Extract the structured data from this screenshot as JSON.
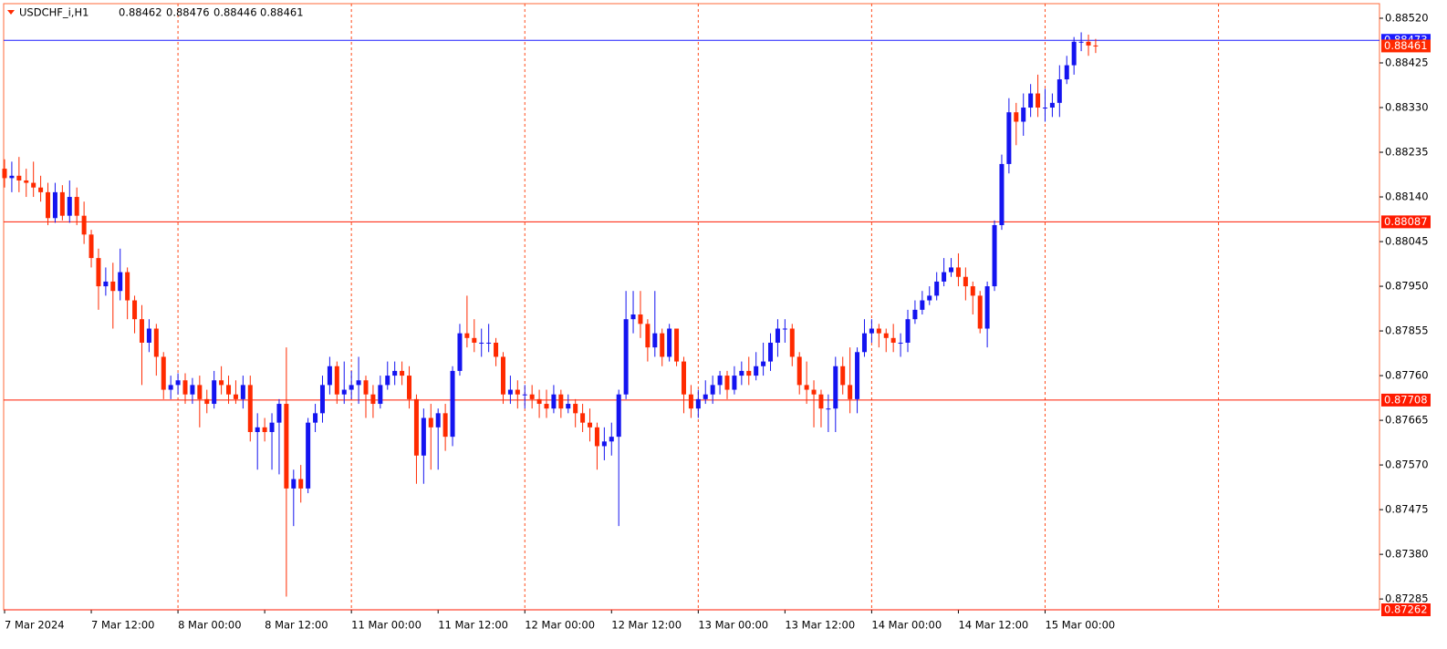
{
  "chart_data": {
    "type": "candlestick",
    "title": "USDCHF_i,H1",
    "categories": [
      "7 Mar 2024",
      null,
      null,
      null,
      null,
      null,
      null,
      null,
      null,
      null,
      null,
      null,
      "7 Mar 12:00",
      null,
      null,
      null,
      null,
      null,
      null,
      null,
      null,
      null,
      null,
      null,
      "8 Mar 00:00",
      null,
      null,
      null,
      null,
      null,
      null,
      null,
      null,
      null,
      null,
      null,
      "8 Mar 12:00",
      null,
      null,
      null,
      null,
      null,
      null,
      null,
      null,
      null,
      null,
      null,
      "11 Mar 00:00",
      null,
      null,
      null,
      null,
      null,
      null,
      null,
      null,
      null,
      null,
      null,
      "11 Mar 12:00",
      null,
      null,
      null,
      null,
      null,
      null,
      null,
      null,
      null,
      null,
      null,
      "12 Mar 00:00",
      null,
      null,
      null,
      null,
      null,
      null,
      null,
      null,
      null,
      null,
      null,
      "12 Mar 12:00",
      null,
      null,
      null,
      null,
      null,
      null,
      null,
      null,
      null,
      null,
      null,
      "13 Mar 00:00",
      null,
      null,
      null,
      null,
      null,
      null,
      null,
      null,
      null,
      null,
      null,
      "13 Mar 12:00",
      null,
      null,
      null,
      null,
      null,
      null,
      null,
      null,
      null,
      null,
      null,
      "14 Mar 00:00",
      null,
      null,
      null,
      null,
      null,
      null,
      null,
      null,
      null,
      null,
      null,
      "14 Mar 12:00",
      null,
      null,
      null,
      null,
      null,
      null,
      null,
      null,
      null,
      null,
      null,
      "15 Mar 00:00",
      null,
      null,
      null,
      null,
      null,
      null,
      null
    ],
    "open": [
      0.882,
      0.8818,
      0.88185,
      0.88175,
      0.8817,
      0.8816,
      0.8815,
      0.88095,
      0.8815,
      0.881,
      0.8814,
      0.881,
      0.8806,
      0.8801,
      0.8795,
      0.8796,
      0.8794,
      0.8798,
      0.8792,
      0.8788,
      0.8783,
      0.8786,
      0.878,
      0.8773,
      0.8774,
      0.8775,
      0.8772,
      0.8774,
      0.8771,
      0.877,
      0.8775,
      0.8774,
      0.8772,
      0.8771,
      0.8774,
      0.8764,
      0.8765,
      0.8764,
      0.8766,
      0.877,
      0.8752,
      0.8754,
      0.8752,
      0.8766,
      0.8768,
      0.8774,
      0.8778,
      0.8772,
      0.8773,
      0.8774,
      0.8775,
      0.8772,
      0.877,
      0.8774,
      0.8776,
      0.8777,
      0.8776,
      0.8771,
      0.8759,
      0.8767,
      0.8765,
      0.8768,
      0.8763,
      0.8777,
      0.8785,
      0.8784,
      0.8783,
      0.8783,
      0.8783,
      0.878,
      0.8772,
      0.8773,
      0.8772,
      0.8772,
      0.8771,
      0.877,
      0.8769,
      0.8772,
      0.8769,
      0.877,
      0.8768,
      0.8766,
      0.8765,
      0.8761,
      0.8762,
      0.8763,
      0.8772,
      0.8788,
      0.8789,
      0.8787,
      0.8782,
      0.8785,
      0.878,
      0.8786,
      0.8779,
      0.8772,
      0.8769,
      0.8771,
      0.8772,
      0.8774,
      0.8776,
      0.8773,
      0.8776,
      0.8777,
      0.8776,
      0.8778,
      0.8779,
      0.8783,
      0.8786,
      0.8786,
      0.878,
      0.8774,
      0.8773,
      0.8772,
      0.8769,
      0.8769,
      0.8778,
      0.8774,
      0.8771,
      0.8781,
      0.8785,
      0.8786,
      0.8785,
      0.8784,
      0.8783,
      0.8783,
      0.8788,
      0.879,
      0.8792,
      0.8793,
      0.8796,
      0.8798,
      0.8799,
      0.8797,
      0.8795,
      0.8793,
      0.8786,
      0.8795,
      0.8808,
      0.8821,
      0.8832,
      0.883,
      0.8833,
      0.8836,
      0.8833,
      0.8833,
      0.8834,
      0.8839,
      0.8842,
      0.8847,
      0.8847,
      0.88462
    ],
    "high": [
      0.8822,
      0.88215,
      0.88225,
      0.882,
      0.88215,
      0.88185,
      0.8817,
      0.8817,
      0.88165,
      0.88175,
      0.8816,
      0.8813,
      0.8807,
      0.8803,
      0.8799,
      0.88,
      0.8803,
      0.8799,
      0.8793,
      0.8791,
      0.8788,
      0.8787,
      0.8781,
      0.8776,
      0.87765,
      0.87765,
      0.87755,
      0.8776,
      0.8773,
      0.8777,
      0.8778,
      0.8776,
      0.8775,
      0.8776,
      0.8776,
      0.8768,
      0.8767,
      0.8768,
      0.8771,
      0.8782,
      0.8756,
      0.8757,
      0.8767,
      0.877,
      0.8776,
      0.878,
      0.8779,
      0.8779,
      0.8777,
      0.878,
      0.8776,
      0.8774,
      0.8776,
      0.8779,
      0.8779,
      0.8779,
      0.8778,
      0.8772,
      0.8769,
      0.877,
      0.8769,
      0.877,
      0.8778,
      0.8787,
      0.8793,
      0.8788,
      0.8786,
      0.8787,
      0.8784,
      0.8781,
      0.8776,
      0.8775,
      0.8774,
      0.8774,
      0.8773,
      0.8773,
      0.8774,
      0.8773,
      0.8772,
      0.8771,
      0.877,
      0.8769,
      0.8766,
      0.8765,
      0.8766,
      0.8773,
      0.8794,
      0.8794,
      0.8794,
      0.8788,
      0.8794,
      0.8786,
      0.8787,
      0.8786,
      0.878,
      0.8774,
      0.8773,
      0.8775,
      0.8776,
      0.8777,
      0.8777,
      0.8778,
      0.8779,
      0.878,
      0.8781,
      0.8783,
      0.8785,
      0.8788,
      0.8788,
      0.8787,
      0.8781,
      0.8779,
      0.8775,
      0.8773,
      0.8772,
      0.878,
      0.878,
      0.8782,
      0.8782,
      0.8788,
      0.8788,
      0.8787,
      0.8786,
      0.8787,
      0.8785,
      0.879,
      0.8792,
      0.8794,
      0.8795,
      0.8798,
      0.8801,
      0.8801,
      0.8802,
      0.8799,
      0.8796,
      0.8794,
      0.8796,
      0.8809,
      0.8823,
      0.8835,
      0.8834,
      0.8836,
      0.8838,
      0.884,
      0.8837,
      0.8836,
      0.8842,
      0.8844,
      0.8848,
      0.8849,
      0.88485,
      0.88476
    ],
    "low": [
      0.8816,
      0.8815,
      0.8815,
      0.8814,
      0.8814,
      0.8813,
      0.8808,
      0.88085,
      0.8809,
      0.88085,
      0.8808,
      0.8804,
      0.8799,
      0.879,
      0.8793,
      0.8786,
      0.8792,
      0.8788,
      0.8785,
      0.8774,
      0.8781,
      0.8776,
      0.8771,
      0.8771,
      0.8772,
      0.877,
      0.877,
      0.8765,
      0.8768,
      0.8769,
      0.8772,
      0.877,
      0.877,
      0.8769,
      0.8762,
      0.8756,
      0.8762,
      0.8756,
      0.8755,
      0.8729,
      0.8744,
      0.8749,
      0.8751,
      0.8764,
      0.8766,
      0.8772,
      0.877,
      0.877,
      0.8771,
      0.877,
      0.8767,
      0.8767,
      0.8769,
      0.8773,
      0.8774,
      0.8774,
      0.8769,
      0.8753,
      0.8753,
      0.8756,
      0.8756,
      0.876,
      0.8761,
      0.8776,
      0.8782,
      0.8781,
      0.878,
      0.8781,
      0.8778,
      0.877,
      0.877,
      0.8769,
      0.8769,
      0.8769,
      0.8767,
      0.8767,
      0.8768,
      0.8767,
      0.8768,
      0.8765,
      0.8764,
      0.8762,
      0.8756,
      0.8758,
      0.8759,
      0.8744,
      0.8771,
      0.8785,
      0.8784,
      0.8779,
      0.878,
      0.8778,
      0.8779,
      0.8778,
      0.8768,
      0.8767,
      0.8767,
      0.877,
      0.877,
      0.8772,
      0.8771,
      0.8772,
      0.8774,
      0.8774,
      0.8775,
      0.8776,
      0.8777,
      0.878,
      0.8783,
      0.8778,
      0.8772,
      0.877,
      0.8765,
      0.8765,
      0.8764,
      0.8764,
      0.8772,
      0.8768,
      0.8768,
      0.878,
      0.8783,
      0.8782,
      0.8781,
      0.8781,
      0.878,
      0.8781,
      0.8787,
      0.8789,
      0.8791,
      0.8792,
      0.8795,
      0.8797,
      0.8795,
      0.8792,
      0.8789,
      0.8785,
      0.8782,
      0.8794,
      0.8807,
      0.8819,
      0.8825,
      0.8827,
      0.8831,
      0.8831,
      0.883,
      0.8831,
      0.8831,
      0.8838,
      0.884,
      0.8845,
      0.8844,
      0.88446
    ],
    "close": [
      0.8818,
      0.88185,
      0.88175,
      0.8817,
      0.8816,
      0.8815,
      0.88095,
      0.8815,
      0.881,
      0.8814,
      0.881,
      0.8806,
      0.8801,
      0.8795,
      0.8796,
      0.8794,
      0.8798,
      0.8792,
      0.8788,
      0.8783,
      0.8786,
      0.878,
      0.8773,
      0.8774,
      0.8775,
      0.8772,
      0.8774,
      0.8771,
      0.877,
      0.8775,
      0.8774,
      0.8772,
      0.8771,
      0.8774,
      0.8764,
      0.8765,
      0.8764,
      0.8766,
      0.877,
      0.8752,
      0.8754,
      0.8752,
      0.8766,
      0.8768,
      0.8774,
      0.8778,
      0.8772,
      0.8773,
      0.8774,
      0.8775,
      0.8772,
      0.877,
      0.8774,
      0.8776,
      0.8777,
      0.8776,
      0.8771,
      0.8759,
      0.8767,
      0.8765,
      0.8768,
      0.8763,
      0.8777,
      0.8785,
      0.8784,
      0.8783,
      0.8783,
      0.8783,
      0.878,
      0.8772,
      0.8773,
      0.8772,
      0.8772,
      0.8771,
      0.877,
      0.8769,
      0.8772,
      0.8769,
      0.877,
      0.8768,
      0.8766,
      0.8765,
      0.8761,
      0.8762,
      0.8763,
      0.8772,
      0.8788,
      0.8789,
      0.8787,
      0.8782,
      0.8785,
      0.878,
      0.8786,
      0.8779,
      0.8772,
      0.8769,
      0.8771,
      0.8772,
      0.8774,
      0.8776,
      0.8773,
      0.8776,
      0.8777,
      0.8776,
      0.8778,
      0.8779,
      0.8783,
      0.8786,
      0.8786,
      0.878,
      0.8774,
      0.8773,
      0.8772,
      0.8769,
      0.8769,
      0.8778,
      0.8774,
      0.8771,
      0.8781,
      0.8785,
      0.8786,
      0.8785,
      0.8784,
      0.8783,
      0.8783,
      0.8788,
      0.879,
      0.8792,
      0.8793,
      0.8796,
      0.8798,
      0.8799,
      0.8797,
      0.8795,
      0.8793,
      0.8786,
      0.8795,
      0.8808,
      0.8821,
      0.8832,
      0.883,
      0.8833,
      0.8836,
      0.8833,
      0.8833,
      0.8834,
      0.8839,
      0.8842,
      0.8847,
      0.8847,
      0.88462,
      0.88461
    ],
    "colors": {
      "up": "#1414f0",
      "down": "#ff2a00",
      "grid": "#ff4a1a"
    },
    "ylim": [
      0.87262,
      0.88551
    ],
    "yticks": [
      {
        "value": 0.8852,
        "label": "0.88520"
      },
      {
        "value": 0.88425,
        "label": "0.88425"
      },
      {
        "value": 0.8833,
        "label": "0.88330"
      },
      {
        "value": 0.88235,
        "label": "0.88235"
      },
      {
        "value": 0.8814,
        "label": "0.88140"
      },
      {
        "value": 0.88045,
        "label": "0.88045"
      },
      {
        "value": 0.8795,
        "label": "0.87950"
      },
      {
        "value": 0.87855,
        "label": "0.87855"
      },
      {
        "value": 0.8776,
        "label": "0.87760"
      },
      {
        "value": 0.87665,
        "label": "0.87665"
      },
      {
        "value": 0.8757,
        "label": "0.87570"
      },
      {
        "value": 0.87475,
        "label": "0.87475"
      },
      {
        "value": 0.8738,
        "label": "0.87380"
      },
      {
        "value": 0.87285,
        "label": "0.87285"
      }
    ],
    "grid": true,
    "levels": [
      {
        "value": 0.88473,
        "color": "#1a1aff"
      },
      {
        "value": 0.88087,
        "color": "#ff1a00"
      },
      {
        "value": 0.87708,
        "color": "#ff1a00"
      },
      {
        "value": 0.87262,
        "color": "#ff1a00"
      }
    ],
    "current_color": "#ff2a00"
  }
}
